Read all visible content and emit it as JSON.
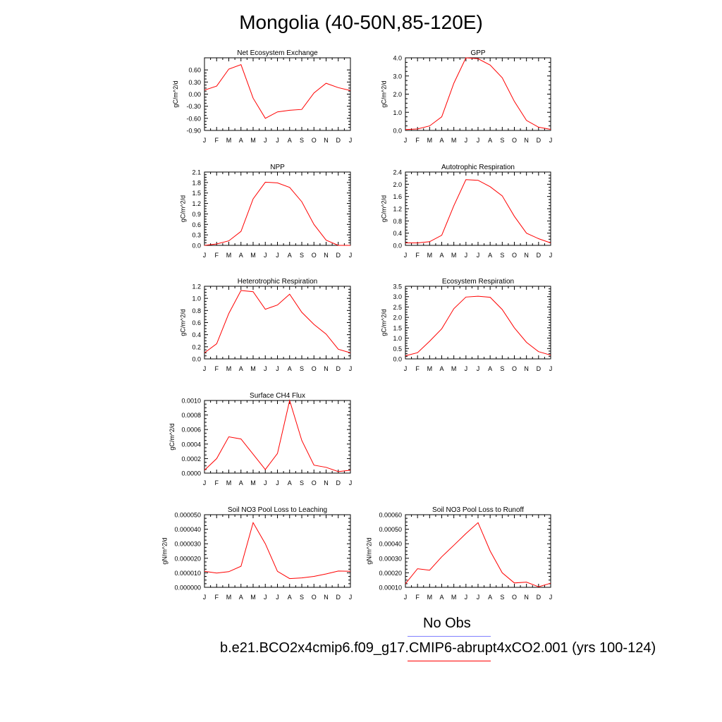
{
  "title": "Mongolia (40-50N,85-120E)",
  "months": [
    "J",
    "F",
    "M",
    "A",
    "M",
    "J",
    "J",
    "A",
    "S",
    "O",
    "N",
    "D",
    "J"
  ],
  "legend": {
    "obs_label": "No Obs",
    "obs_color": "#8080ff",
    "model_label": "b.e21.BCO2x4cmip6.f09_g17.CMIP6-abrupt4xCO2.001 (yrs 100-124)",
    "model_color": "#ff0000"
  },
  "chart_data": [
    {
      "type": "line",
      "title": "Net Ecosystem Exchange",
      "ylabel": "gC/m^2/d",
      "ylim": [
        -0.9,
        0.9
      ],
      "yticks": [
        "-0.90",
        "-0.60",
        "-0.30",
        "0.00",
        "0.30",
        "0.60"
      ],
      "ytick_values": [
        -0.9,
        -0.6,
        -0.3,
        0.0,
        0.3,
        0.6
      ],
      "series": [
        {
          "values": [
            0.1,
            0.2,
            0.62,
            0.73,
            -0.1,
            -0.6,
            -0.44,
            -0.4,
            -0.38,
            0.03,
            0.27,
            0.16,
            0.09
          ]
        }
      ]
    },
    {
      "type": "line",
      "title": "GPP",
      "ylabel": "gC/m^2/d",
      "ylim": [
        0,
        4
      ],
      "yticks": [
        "0.0",
        "1.0",
        "2.0",
        "3.0",
        "4.0"
      ],
      "ytick_values": [
        0,
        1,
        2,
        3,
        4
      ],
      "series": [
        {
          "values": [
            0.05,
            0.08,
            0.25,
            0.75,
            2.6,
            4.0,
            3.95,
            3.6,
            2.9,
            1.6,
            0.55,
            0.18,
            0.06
          ]
        }
      ]
    },
    {
      "type": "line",
      "title": "NPP",
      "ylabel": "gC/m^2/d",
      "ylim": [
        0,
        2.1
      ],
      "yticks": [
        "0.0",
        "0.3",
        "0.6",
        "0.9",
        "1.2",
        "1.5",
        "1.8",
        "2.1"
      ],
      "ytick_values": [
        0,
        0.3,
        0.6,
        0.9,
        1.2,
        1.5,
        1.8,
        2.1
      ],
      "series": [
        {
          "values": [
            0.0,
            0.04,
            0.13,
            0.4,
            1.33,
            1.81,
            1.79,
            1.66,
            1.25,
            0.6,
            0.15,
            0.0,
            0.0
          ]
        }
      ]
    },
    {
      "type": "line",
      "title": "Autotrophic Respiration",
      "ylabel": "gC/m^2/d",
      "ylim": [
        0,
        2.4
      ],
      "yticks": [
        "0.0",
        "0.4",
        "0.8",
        "1.2",
        "1.6",
        "2.0",
        "2.4"
      ],
      "ytick_values": [
        0,
        0.4,
        0.8,
        1.2,
        1.6,
        2.0,
        2.4
      ],
      "series": [
        {
          "values": [
            0.08,
            0.08,
            0.12,
            0.33,
            1.3,
            2.15,
            2.13,
            1.92,
            1.62,
            0.95,
            0.4,
            0.22,
            0.08
          ]
        }
      ]
    },
    {
      "type": "line",
      "title": "Heterotrophic Respiration",
      "ylabel": "gC/m^2/d",
      "ylim": [
        0,
        1.2
      ],
      "yticks": [
        "0.0",
        "0.2",
        "0.4",
        "0.6",
        "0.8",
        "1.0",
        "1.2"
      ],
      "ytick_values": [
        0,
        0.2,
        0.4,
        0.6,
        0.8,
        1.0,
        1.2
      ],
      "series": [
        {
          "values": [
            0.1,
            0.25,
            0.75,
            1.13,
            1.11,
            0.82,
            0.89,
            1.07,
            0.77,
            0.57,
            0.41,
            0.16,
            0.1
          ]
        }
      ]
    },
    {
      "type": "line",
      "title": "Ecosystem Respiration",
      "ylabel": "gC/m^2/d",
      "ylim": [
        0,
        3.5
      ],
      "yticks": [
        "0.0",
        "0.5",
        "1.0",
        "1.5",
        "2.0",
        "2.5",
        "3.0",
        "3.5"
      ],
      "ytick_values": [
        0,
        0.5,
        1.0,
        1.5,
        2.0,
        2.5,
        3.0,
        3.5
      ],
      "series": [
        {
          "values": [
            0.15,
            0.3,
            0.85,
            1.45,
            2.42,
            2.98,
            3.02,
            2.97,
            2.38,
            1.5,
            0.8,
            0.35,
            0.18
          ]
        }
      ]
    },
    {
      "type": "line",
      "title": "Surface CH4 Flux",
      "ylabel": "gC/m^2/d",
      "ylim": [
        0,
        0.001
      ],
      "yticks": [
        "0.0000",
        "0.0002",
        "0.0004",
        "0.0006",
        "0.0008",
        "0.0010"
      ],
      "ytick_values": [
        0,
        0.0002,
        0.0004,
        0.0006,
        0.0008,
        0.001
      ],
      "series": [
        {
          "values": [
            4e-05,
            0.0002,
            0.0005,
            0.00047,
            0.00026,
            5e-05,
            0.00027,
            0.001,
            0.00045,
            0.00011,
            8e-05,
            2e-05,
            4e-05
          ]
        }
      ]
    },
    {
      "type": "line",
      "title": "Soil NO3 Pool Loss to Leaching",
      "ylabel": "gN/m^2/d",
      "ylim": [
        0,
        5e-05
      ],
      "yticks": [
        "0.000000",
        "0.000010",
        "0.000020",
        "0.000030",
        "0.000040",
        "0.000050"
      ],
      "ytick_values": [
        0,
        1e-05,
        2e-05,
        3e-05,
        4e-05,
        5e-05
      ],
      "series": [
        {
          "values": [
            1.1e-05,
            9.8e-06,
            1.08e-05,
            1.45e-05,
            4.45e-05,
            3e-05,
            1.1e-05,
            6e-06,
            6.5e-06,
            7.5e-06,
            9.2e-06,
            1.12e-05,
            1.1e-05
          ]
        }
      ]
    },
    {
      "type": "line",
      "title": "Soil NO3 Pool Loss to Runoff",
      "ylabel": "gN/m^2/d",
      "ylim": [
        0.0001,
        0.0006
      ],
      "yticks": [
        "0.00010",
        "0.00020",
        "0.00030",
        "0.00040",
        "0.00050",
        "0.00060"
      ],
      "ytick_values": [
        0.0001,
        0.0002,
        0.0003,
        0.0004,
        0.0005,
        0.0006
      ],
      "series": [
        {
          "values": [
            0.000125,
            0.000228,
            0.000218,
            0.00031,
            0.00039,
            0.00047,
            0.000545,
            0.00035,
            0.0002,
            0.00013,
            0.000136,
            0.000104,
            0.000128
          ]
        }
      ]
    }
  ]
}
